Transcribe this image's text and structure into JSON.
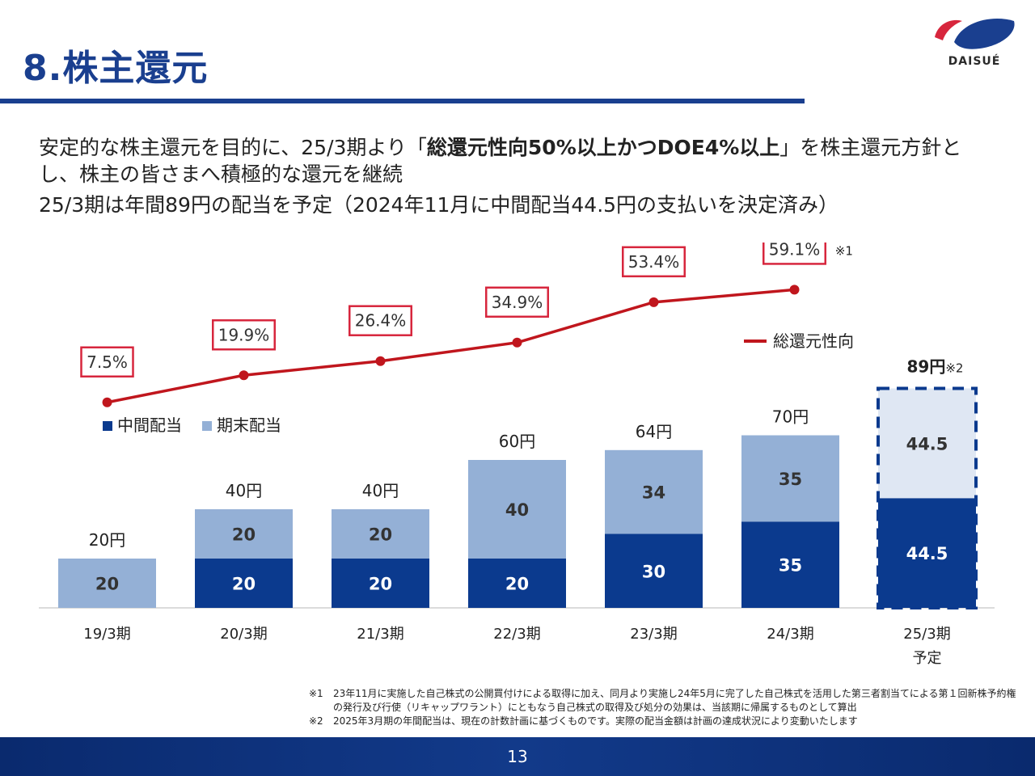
{
  "title": "8.株主還元",
  "logo": {
    "text": "DAISUÉ",
    "colors": {
      "red": "#d7263d",
      "blue": "#1a3f8f"
    }
  },
  "intro": {
    "line1_pre": "安定的な株主還元を目的に、25/3期より「",
    "line1_em": "総還元性向50%以上かつDOE4%以上",
    "line1_post": "」を株主還元方針とし、株主の皆さまへ積極的な還元を継続",
    "line2": "25/3期は年間89円の配当を予定（2024年11月に中間配当44.5円の支払いを決定済み）"
  },
  "chart_data": {
    "type": "bar",
    "stacked": true,
    "categories": [
      "19/3期",
      "20/3期",
      "21/3期",
      "22/3期",
      "23/3期",
      "24/3期",
      "25/3期"
    ],
    "category_sublabels": [
      "",
      "",
      "",
      "",
      "",
      "",
      "予定"
    ],
    "series": [
      {
        "name": "中間配当",
        "color": "#0b3a8e",
        "values": [
          0,
          20,
          20,
          20,
          30,
          35,
          44.5
        ],
        "labels": [
          "",
          "20",
          "20",
          "20",
          "30",
          "35",
          "44.5"
        ]
      },
      {
        "name": "期末配当",
        "color": "#94b0d6",
        "values": [
          20,
          20,
          20,
          40,
          34,
          35,
          44.5
        ],
        "labels": [
          "20",
          "20",
          "20",
          "40",
          "34",
          "35",
          "44.5"
        ]
      }
    ],
    "forecast_index": 6,
    "totals": [
      "20円",
      "40円",
      "40円",
      "60円",
      "64円",
      "70円",
      "89円"
    ],
    "forecast_total_note": "※2",
    "ylim": [
      0,
      100
    ],
    "line": {
      "name": "総還元性向",
      "color": "#c0161d",
      "values": [
        7.5,
        19.9,
        26.4,
        34.9,
        53.4,
        59.1
      ],
      "labels": [
        "7.5%",
        "19.9%",
        "26.4%",
        "34.9%",
        "53.4%",
        "59.1%"
      ],
      "last_note": "※1",
      "ylim": [
        0,
        110
      ]
    },
    "legend": "top-left",
    "line_legend": "right"
  },
  "notes": [
    {
      "mark": "※1",
      "text": "23年11月に実施した自己株式の公開買付けによる取得に加え、同月より実施し24年5月に完了した自己株式を活用した第三者割当てによる第１回新株予約権の発行及び行使（リキャップワラント）にともなう自己株式の取得及び処分の効果は、当該期に帰属するものとして算出"
    },
    {
      "mark": "※2",
      "text": "2025年3月期の年間配当は、現在の計数計画に基づくものです。実際の配当金額は計画の達成状況により変動いたします"
    }
  ],
  "page_number": "13"
}
